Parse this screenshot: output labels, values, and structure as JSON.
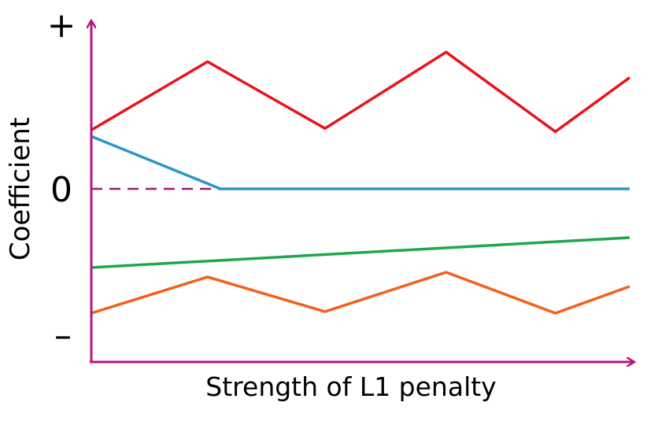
{
  "chart_data": {
    "type": "line",
    "title": "",
    "xlabel": "Strength of L1 penalty",
    "ylabel": "Coefficient",
    "y_tick_labels": {
      "top": "+",
      "zero": "0",
      "bottom": "–"
    },
    "x": [
      0,
      0.22,
      0.44,
      0.66,
      0.88,
      1.0
    ],
    "ylim": [
      -1,
      1
    ],
    "zero_line": "dashed",
    "grid": false,
    "legend": "none",
    "series": [
      {
        "color": "#e8141b",
        "x": [
          0,
          0.216,
          0.434,
          0.659,
          0.862,
          1.0
        ],
        "values": [
          0.37,
          0.8,
          0.38,
          0.86,
          0.36,
          0.7
        ]
      },
      {
        "color": "#2e94c9",
        "x": [
          0,
          0.24,
          1.0
        ],
        "values": [
          0.33,
          0.0,
          0.0
        ]
      },
      {
        "color": "#1da84b",
        "x": [
          0,
          1.0
        ],
        "values": [
          -0.5,
          -0.31
        ]
      },
      {
        "color": "#f2601c",
        "x": [
          0,
          0.216,
          0.434,
          0.659,
          0.862,
          1.0
        ],
        "values": [
          -0.79,
          -0.56,
          -0.78,
          -0.53,
          -0.79,
          -0.62
        ]
      }
    ],
    "axis_color": "#b5167f",
    "zero_line_color": "#9e1a6b"
  }
}
